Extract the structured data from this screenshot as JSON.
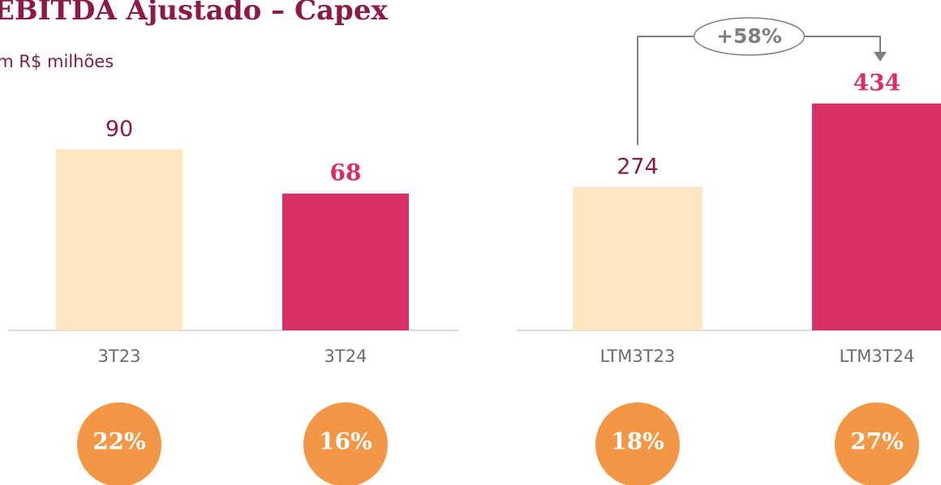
{
  "title": "EBITDA Ajustado – Capex",
  "subtitle": "Em R$ milhões",
  "chart_data": [
    {
      "type": "bar",
      "categories": [
        "3T23",
        "3T24"
      ],
      "values": [
        90,
        68
      ],
      "colors": [
        "#fde6c0",
        "#d63065"
      ],
      "ylim": [
        0,
        124
      ],
      "margins": [
        22,
        16
      ],
      "margin_labels": [
        "22%",
        "16%"
      ]
    },
    {
      "type": "bar",
      "categories": [
        "LTM3T23",
        "LTM3T24"
      ],
      "values": [
        274,
        434
      ],
      "colors": [
        "#fde6c0",
        "#d63065"
      ],
      "ylim": [
        0,
        477
      ],
      "annotation": "+58%",
      "margins": [
        18,
        27
      ],
      "margin_labels": [
        "18%",
        "27%"
      ]
    }
  ]
}
